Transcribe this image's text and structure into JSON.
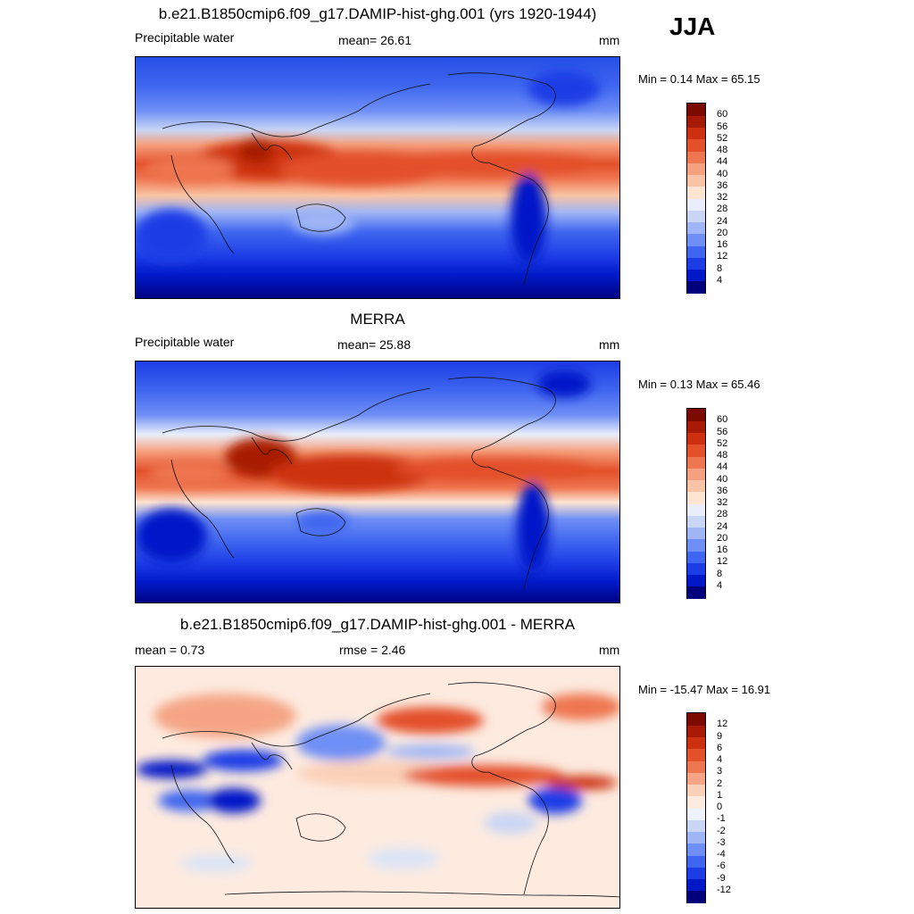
{
  "season": "JJA",
  "panels": [
    {
      "id": "model",
      "title": "b.e21.B1850cmip6.f09_g17.DAMIP-hist-ghg.001 (yrs 1920-1944)",
      "left_label": "Precipitable water",
      "center_label": "mean=  26.61",
      "units": "mm",
      "minmax": "Min =   0.14 Max =  65.15",
      "colorbar": {
        "colors": [
          "#00007d",
          "#0019c8",
          "#1c3de6",
          "#3f66f0",
          "#6e8ff5",
          "#9fb5f5",
          "#c9d6f5",
          "#e9eefa",
          "#fde5d2",
          "#f9c4a5",
          "#f5a07e",
          "#ee7650",
          "#e3502a",
          "#cc3010",
          "#a71a05",
          "#7d0a00"
        ],
        "labels": [
          "4",
          "8",
          "12",
          "16",
          "20",
          "24",
          "28",
          "32",
          "36",
          "40",
          "44",
          "48",
          "52",
          "56",
          "60"
        ]
      }
    },
    {
      "id": "obs",
      "title": "MERRA",
      "left_label": "Precipitable water",
      "center_label": "mean=  25.88",
      "units": "mm",
      "minmax": "Min =   0.13 Max =  65.46",
      "colorbar": {
        "colors": [
          "#00007d",
          "#0019c8",
          "#1c3de6",
          "#3f66f0",
          "#6e8ff5",
          "#9fb5f5",
          "#c9d6f5",
          "#e9eefa",
          "#fde5d2",
          "#f9c4a5",
          "#f5a07e",
          "#ee7650",
          "#e3502a",
          "#cc3010",
          "#a71a05",
          "#7d0a00"
        ],
        "labels": [
          "4",
          "8",
          "12",
          "16",
          "20",
          "24",
          "28",
          "32",
          "36",
          "40",
          "44",
          "48",
          "52",
          "56",
          "60"
        ]
      }
    },
    {
      "id": "diff",
      "title": "b.e21.B1850cmip6.f09_g17.DAMIP-hist-ghg.001 - MERRA",
      "left_label": "mean =   0.73",
      "center_label": "rmse =   2.46",
      "units": "mm",
      "minmax": "Min = -15.47 Max =  16.91",
      "colorbar": {
        "colors": [
          "#00007d",
          "#0019c8",
          "#1c3de6",
          "#3f66f0",
          "#6e8ff5",
          "#9fb5f5",
          "#c9d6f5",
          "#eef2fb",
          "#fdebe0",
          "#fbd0b8",
          "#f5a585",
          "#ee7650",
          "#e3502a",
          "#cc3010",
          "#a71a05",
          "#7d0a00"
        ],
        "labels": [
          "-12",
          "-9",
          "-6",
          "-4",
          "-3",
          "-2",
          "-1",
          "0",
          "1",
          "2",
          "3",
          "4",
          "6",
          "9",
          "12"
        ]
      }
    }
  ]
}
